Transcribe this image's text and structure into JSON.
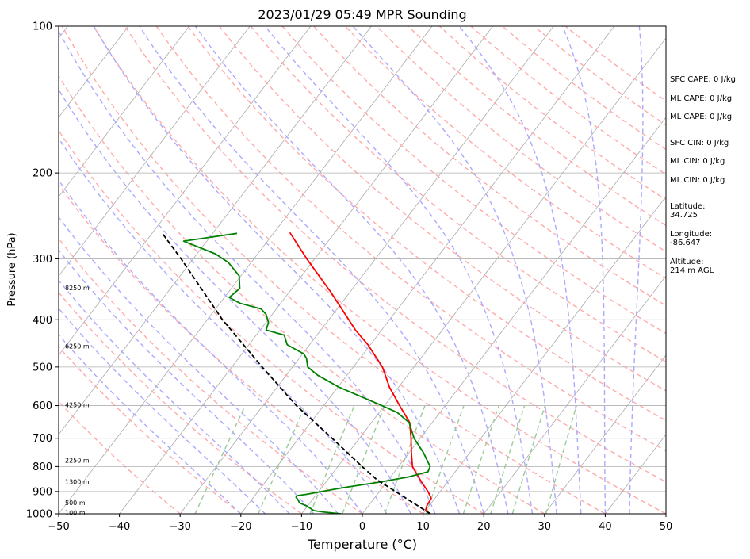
{
  "chart_data": {
    "type": "line",
    "title": "2023/01/29 05:49 MPR Sounding",
    "xlabel": "Temperature (°C)",
    "ylabel": "Pressure (hPa)",
    "xlim": [
      -50,
      50
    ],
    "ylim": [
      1000,
      100
    ],
    "yscale": "log",
    "skew": "skew-T (isotherms slanted)",
    "xticks": [
      -50,
      -40,
      -30,
      -20,
      -10,
      0,
      10,
      20,
      30,
      40,
      50
    ],
    "yticks": [
      100,
      200,
      300,
      400,
      500,
      600,
      700,
      800,
      900,
      1000
    ],
    "grid": true,
    "background_lines": {
      "isotherms": {
        "color": "#aaaaaa",
        "style": "solid"
      },
      "dry_adiabats": {
        "color": "#ffaaaa",
        "style": "dashed"
      },
      "moist_adiabats": {
        "color": "#aaaaff",
        "style": "dashed"
      },
      "mixing_ratio_lines": {
        "color": "#99cc99",
        "style": "dashed"
      }
    },
    "height_labels": [
      {
        "pressure": 998,
        "label": "100 m"
      },
      {
        "pressure": 953,
        "label": "500 m"
      },
      {
        "pressure": 862,
        "label": "1300 m"
      },
      {
        "pressure": 780,
        "label": "2250 m"
      },
      {
        "pressure": 600,
        "label": "4250 m"
      },
      {
        "pressure": 455,
        "label": "6250 m"
      },
      {
        "pressure": 345,
        "label": "8250 m"
      }
    ],
    "series": [
      {
        "role": "temperature",
        "color": "#ff0000",
        "points": [
          {
            "p": 1000,
            "t": 11.2
          },
          {
            "p": 985,
            "t": 10.0
          },
          {
            "p": 962,
            "t": 9.6
          },
          {
            "p": 930,
            "t": 9.4
          },
          {
            "p": 900,
            "t": 8.0
          },
          {
            "p": 860,
            "t": 5.7
          },
          {
            "p": 800,
            "t": 2.3
          },
          {
            "p": 750,
            "t": 0.4
          },
          {
            "p": 700,
            "t": -1.5
          },
          {
            "p": 650,
            "t": -3.7
          },
          {
            "p": 600,
            "t": -7.5
          },
          {
            "p": 550,
            "t": -11.5
          },
          {
            "p": 500,
            "t": -15.2
          },
          {
            "p": 450,
            "t": -20.4
          },
          {
            "p": 420,
            "t": -24.3
          },
          {
            "p": 400,
            "t": -26.7
          },
          {
            "p": 350,
            "t": -33.3
          },
          {
            "p": 300,
            "t": -41.3
          },
          {
            "p": 265,
            "t": -47.4
          }
        ]
      },
      {
        "role": "dewpoint",
        "color": "#008000",
        "points": [
          {
            "p": 1000,
            "t": -3.5
          },
          {
            "p": 992,
            "t": -6.5
          },
          {
            "p": 985,
            "t": -8.4
          },
          {
            "p": 965,
            "t": -10.0
          },
          {
            "p": 950,
            "t": -11.7
          },
          {
            "p": 935,
            "t": -12.4
          },
          {
            "p": 925,
            "t": -13.0
          },
          {
            "p": 918,
            "t": -13.0
          },
          {
            "p": 912,
            "t": -11.6
          },
          {
            "p": 900,
            "t": -9.5
          },
          {
            "p": 885,
            "t": -6.7
          },
          {
            "p": 860,
            "t": -1.0
          },
          {
            "p": 840,
            "t": 3.0
          },
          {
            "p": 820,
            "t": 5.5
          },
          {
            "p": 800,
            "t": 5.2
          },
          {
            "p": 750,
            "t": 2.4
          },
          {
            "p": 700,
            "t": -1.0
          },
          {
            "p": 650,
            "t": -3.8
          },
          {
            "p": 620,
            "t": -7.0
          },
          {
            "p": 600,
            "t": -10.4
          },
          {
            "p": 550,
            "t": -19.8
          },
          {
            "p": 520,
            "t": -24.8
          },
          {
            "p": 500,
            "t": -27.5
          },
          {
            "p": 480,
            "t": -28.8
          },
          {
            "p": 470,
            "t": -29.8
          },
          {
            "p": 450,
            "t": -33.7
          },
          {
            "p": 430,
            "t": -35.4
          },
          {
            "p": 420,
            "t": -39.0
          },
          {
            "p": 405,
            "t": -39.6
          },
          {
            "p": 390,
            "t": -41.0
          },
          {
            "p": 380,
            "t": -42.5
          },
          {
            "p": 370,
            "t": -46.7
          },
          {
            "p": 360,
            "t": -49.2
          },
          {
            "p": 345,
            "t": -48.6
          },
          {
            "p": 325,
            "t": -50.3
          },
          {
            "p": 305,
            "t": -53.8
          },
          {
            "p": 293,
            "t": -57.0
          },
          {
            "p": 276,
            "t": -63.8
          },
          {
            "p": 266,
            "t": -56.0
          }
        ]
      },
      {
        "role": "parcel",
        "color": "#000000",
        "style": "dashed",
        "points": [
          {
            "p": 1000,
            "t": 11.2
          },
          {
            "p": 850,
            "t": -2.0
          },
          {
            "p": 800,
            "t": -6.0
          },
          {
            "p": 700,
            "t": -14.5
          },
          {
            "p": 600,
            "t": -24.5
          },
          {
            "p": 500,
            "t": -35.0
          },
          {
            "p": 400,
            "t": -47.5
          },
          {
            "p": 300,
            "t": -62.0
          },
          {
            "p": 265,
            "t": -68.5
          }
        ]
      }
    ]
  },
  "stats": {
    "sfc_cape": "SFC CAPE: 0 J/kg",
    "ml_cape_1": "ML CAPE: 0 J/kg",
    "ml_cape_2": "ML CAPE: 0 J/kg",
    "sfc_cin": "SFC CIN: 0 J/kg",
    "ml_cin_1": "ML CIN: 0 J/kg",
    "ml_cin_2": "ML CIN: 0 J/kg",
    "latitude": "Latitude:\n34.725",
    "longitude": "Longitude:\n-86.647",
    "altitude": "Altitude:\n214 m AGL"
  }
}
